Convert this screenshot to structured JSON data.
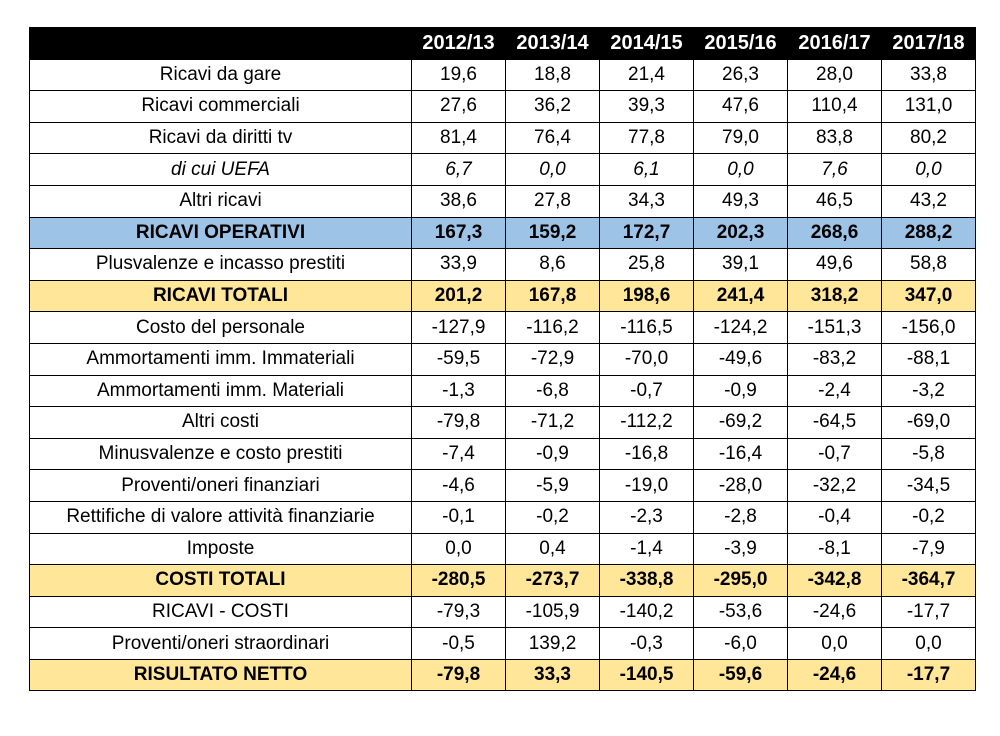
{
  "chart_data": {
    "type": "table",
    "columns": [
      "2012/13",
      "2013/14",
      "2014/15",
      "2015/16",
      "2016/17",
      "2017/18"
    ],
    "rows": [
      {
        "label": "Ricavi da gare",
        "values": [
          "19,6",
          "18,8",
          "21,4",
          "26,3",
          "28,0",
          "33,8"
        ],
        "style": "normal"
      },
      {
        "label": "Ricavi commerciali",
        "values": [
          "27,6",
          "36,2",
          "39,3",
          "47,6",
          "110,4",
          "131,0"
        ],
        "style": "normal"
      },
      {
        "label": "Ricavi da diritti tv",
        "values": [
          "81,4",
          "76,4",
          "77,8",
          "79,0",
          "83,8",
          "80,2"
        ],
        "style": "normal"
      },
      {
        "label": "di cui UEFA",
        "values": [
          "6,7",
          "0,0",
          "6,1",
          "0,0",
          "7,6",
          "0,0"
        ],
        "style": "italic"
      },
      {
        "label": "Altri ricavi",
        "values": [
          "38,6",
          "27,8",
          "34,3",
          "49,3",
          "46,5",
          "43,2"
        ],
        "style": "normal"
      },
      {
        "label": "RICAVI OPERATIVI",
        "values": [
          "167,3",
          "159,2",
          "172,7",
          "202,3",
          "268,6",
          "288,2"
        ],
        "style": "blue"
      },
      {
        "label": "Plusvalenze e incasso prestiti",
        "values": [
          "33,9",
          "8,6",
          "25,8",
          "39,1",
          "49,6",
          "58,8"
        ],
        "style": "normal"
      },
      {
        "label": "RICAVI TOTALI",
        "values": [
          "201,2",
          "167,8",
          "198,6",
          "241,4",
          "318,2",
          "347,0"
        ],
        "style": "gold"
      },
      {
        "label": "Costo del personale",
        "values": [
          "-127,9",
          "-116,2",
          "-116,5",
          "-124,2",
          "-151,3",
          "-156,0"
        ],
        "style": "normal"
      },
      {
        "label": "Ammortamenti imm. Immateriali",
        "values": [
          "-59,5",
          "-72,9",
          "-70,0",
          "-49,6",
          "-83,2",
          "-88,1"
        ],
        "style": "normal"
      },
      {
        "label": "Ammortamenti imm. Materiali",
        "values": [
          "-1,3",
          "-6,8",
          "-0,7",
          "-0,9",
          "-2,4",
          "-3,2"
        ],
        "style": "normal"
      },
      {
        "label": "Altri costi",
        "values": [
          "-79,8",
          "-71,2",
          "-112,2",
          "-69,2",
          "-64,5",
          "-69,0"
        ],
        "style": "normal"
      },
      {
        "label": "Minusvalenze e costo prestiti",
        "values": [
          "-7,4",
          "-0,9",
          "-16,8",
          "-16,4",
          "-0,7",
          "-5,8"
        ],
        "style": "normal"
      },
      {
        "label": "Proventi/oneri finanziari",
        "values": [
          "-4,6",
          "-5,9",
          "-19,0",
          "-28,0",
          "-32,2",
          "-34,5"
        ],
        "style": "normal"
      },
      {
        "label": "Rettifiche di valore attività finanziarie",
        "values": [
          "-0,1",
          "-0,2",
          "-2,3",
          "-2,8",
          "-0,4",
          "-0,2"
        ],
        "style": "normal"
      },
      {
        "label": "Imposte",
        "values": [
          "0,0",
          "0,4",
          "-1,4",
          "-3,9",
          "-8,1",
          "-7,9"
        ],
        "style": "normal"
      },
      {
        "label": "COSTI TOTALI",
        "values": [
          "-280,5",
          "-273,7",
          "-338,8",
          "-295,0",
          "-342,8",
          "-364,7"
        ],
        "style": "gold"
      },
      {
        "label": "RICAVI - COSTI",
        "values": [
          "-79,3",
          "-105,9",
          "-140,2",
          "-53,6",
          "-24,6",
          "-17,7"
        ],
        "style": "normal"
      },
      {
        "label": "Proventi/oneri straordinari",
        "values": [
          "-0,5",
          "139,2",
          "-0,3",
          "-6,0",
          "0,0",
          "0,0"
        ],
        "style": "normal"
      },
      {
        "label": "RISULTATO NETTO",
        "values": [
          "-79,8",
          "33,3",
          "-140,5",
          "-59,6",
          "-24,6",
          "-17,7"
        ],
        "style": "gold"
      }
    ],
    "colors": {
      "header_bg": "#000000",
      "header_text": "#ffffff",
      "operating_revenue_bg": "#9dc3e6",
      "totals_bg": "#ffe699",
      "border": "#000000"
    }
  }
}
